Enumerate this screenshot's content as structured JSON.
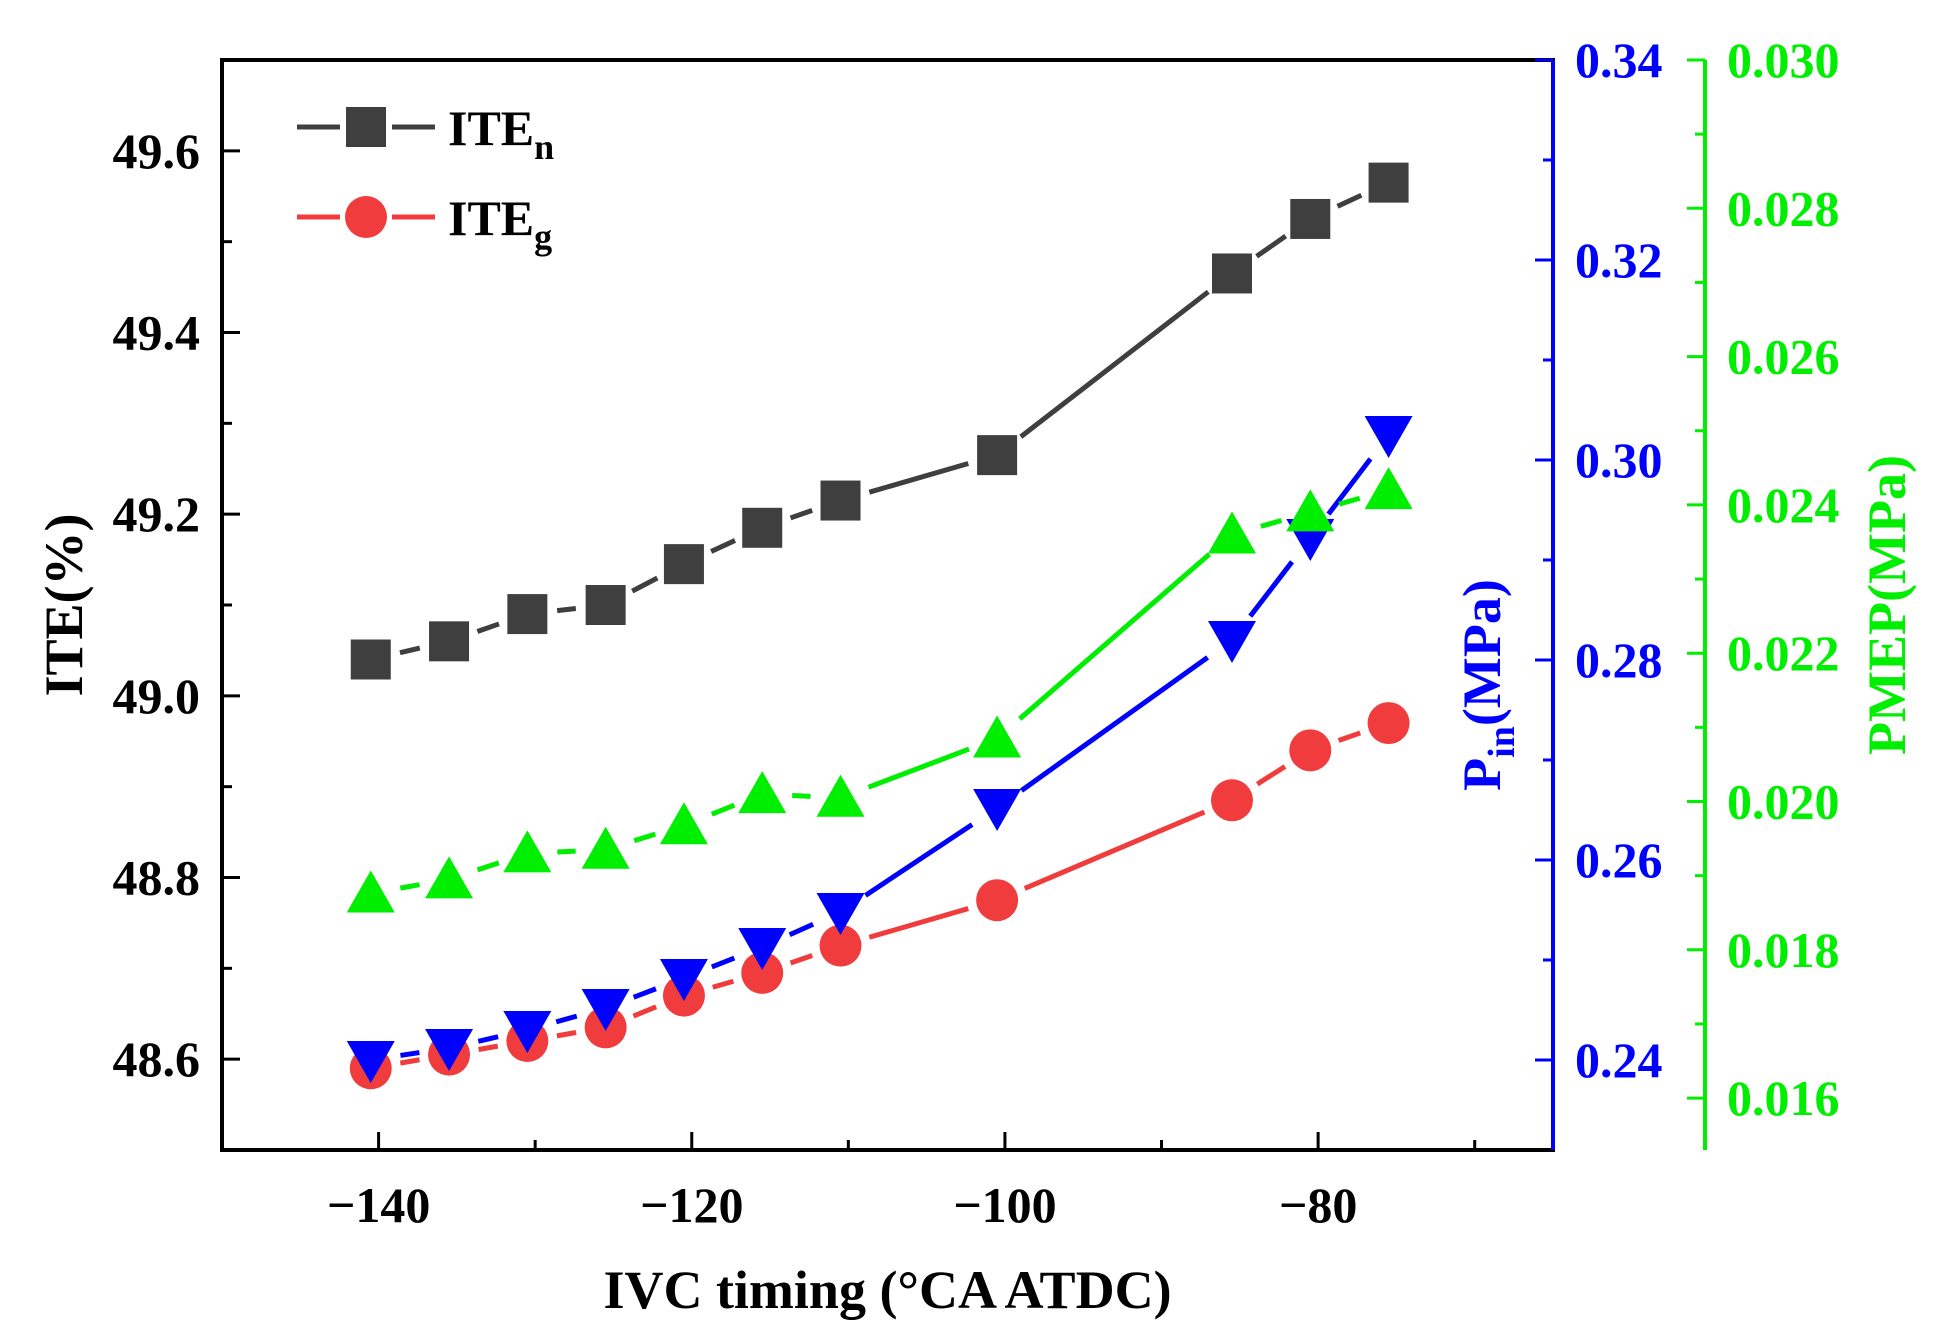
{
  "chart_data": {
    "type": "line",
    "x": [
      -140.5,
      -135.5,
      -130.5,
      -125.5,
      -120.5,
      -115.5,
      -110.5,
      -100.5,
      -85.5,
      -80.5,
      -75.5
    ],
    "xlabel": "IVC timing (°CA ATDC)",
    "xlim": [
      -150,
      -65
    ],
    "xticks": [
      -140,
      -120,
      -100,
      -80
    ],
    "axes": {
      "left": {
        "label": "ITE(%)",
        "color": "#000000",
        "ylim": [
          48.5,
          49.7
        ],
        "ticks": [
          "48.6",
          "48.8",
          "49.0",
          "49.2",
          "49.4",
          "49.6"
        ],
        "tick_values": [
          48.6,
          48.8,
          49.0,
          49.2,
          49.4,
          49.6
        ]
      },
      "right1": {
        "label_main": "P",
        "label_sub": "in",
        "label_rest": "(MPa)",
        "color": "#0000ff",
        "ylim": [
          0.231,
          0.34
        ],
        "ticks": [
          "0.24",
          "0.26",
          "0.28",
          "0.30",
          "0.32",
          "0.34"
        ],
        "tick_values": [
          0.24,
          0.26,
          0.28,
          0.3,
          0.32,
          0.34
        ]
      },
      "right2": {
        "label": "PMEP(MPa)",
        "color": "#00ee00",
        "ylim": [
          0.0153,
          0.03
        ],
        "ticks": [
          "0.016",
          "0.018",
          "0.020",
          "0.022",
          "0.024",
          "0.026",
          "0.028",
          "0.030"
        ],
        "tick_values": [
          0.016,
          0.018,
          0.02,
          0.022,
          0.024,
          0.026,
          0.028,
          0.03
        ]
      }
    },
    "series": [
      {
        "name": "ITE_n",
        "label_main": "ITE",
        "label_sub": "n",
        "axis": "left",
        "color": "#3f3f3f",
        "marker": "square",
        "values": [
          49.04,
          49.06,
          49.09,
          49.1,
          49.145,
          49.185,
          49.215,
          49.265,
          49.465,
          49.525,
          49.565
        ]
      },
      {
        "name": "ITE_g",
        "label_main": "ITE",
        "label_sub": "g",
        "axis": "left",
        "color": "#f03c3c",
        "marker": "circle",
        "values": [
          48.59,
          48.605,
          48.62,
          48.635,
          48.67,
          48.695,
          48.725,
          48.775,
          48.885,
          48.94,
          48.97
        ]
      },
      {
        "name": "Pin",
        "axis": "right1",
        "color": "#0000ff",
        "marker": "triangle-down",
        "values": [
          0.24,
          0.2412,
          0.243,
          0.2452,
          0.2482,
          0.2513,
          0.2548,
          0.2652,
          0.282,
          0.2922,
          0.3025
        ]
      },
      {
        "name": "PMEP",
        "axis": "right2",
        "color": "#00ee00",
        "marker": "triangle-up",
        "values": [
          0.01876,
          0.01895,
          0.0193,
          0.01935,
          0.01968,
          0.0201,
          0.02005,
          0.02085,
          0.0236,
          0.0239,
          0.0242
        ]
      }
    ],
    "legend_position": "top-left"
  }
}
